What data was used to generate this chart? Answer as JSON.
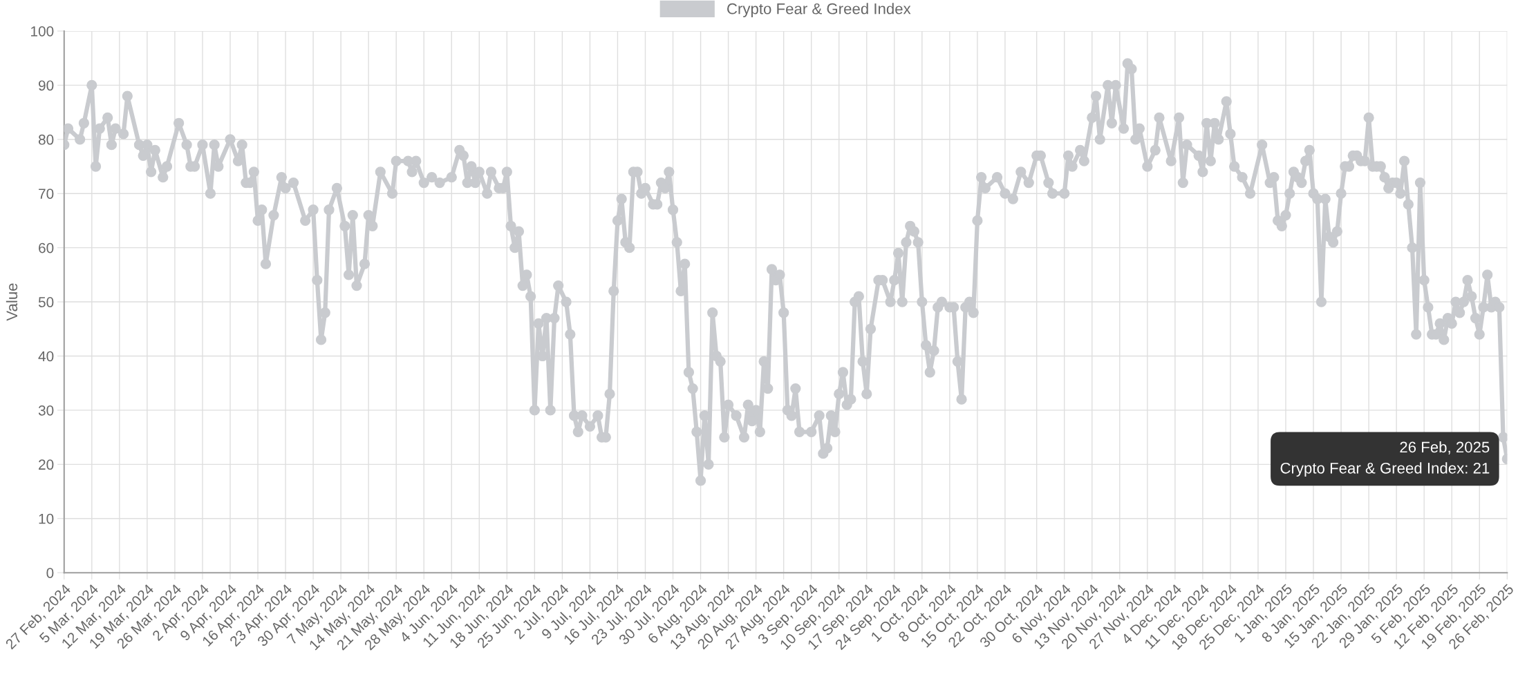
{
  "chart_data": {
    "type": "line",
    "ylabel": "Value",
    "series": [
      {
        "name": "Crypto Fear & Greed Index",
        "color": "#c9cbcf",
        "x": [
          "2024-02-27",
          "2024-02-28",
          "2024-03-02",
          "2024-03-03",
          "2024-03-05",
          "2024-03-06",
          "2024-03-07",
          "2024-03-09",
          "2024-03-10",
          "2024-03-11",
          "2024-03-13",
          "2024-03-14",
          "2024-03-17",
          "2024-03-18",
          "2024-03-19",
          "2024-03-20",
          "2024-03-21",
          "2024-03-23",
          "2024-03-24",
          "2024-03-27",
          "2024-03-29",
          "2024-03-30",
          "2024-03-31",
          "2024-04-02",
          "2024-04-04",
          "2024-04-05",
          "2024-04-06",
          "2024-04-09",
          "2024-04-11",
          "2024-04-12",
          "2024-04-13",
          "2024-04-14",
          "2024-04-15",
          "2024-04-16",
          "2024-04-17",
          "2024-04-18",
          "2024-04-20",
          "2024-04-22",
          "2024-04-23",
          "2024-04-25",
          "2024-04-28",
          "2024-04-30",
          "2024-05-01",
          "2024-05-02",
          "2024-05-03",
          "2024-05-04",
          "2024-05-06",
          "2024-05-08",
          "2024-05-09",
          "2024-05-10",
          "2024-05-11",
          "2024-05-13",
          "2024-05-14",
          "2024-05-15",
          "2024-05-17",
          "2024-05-20",
          "2024-05-21",
          "2024-05-24",
          "2024-05-25",
          "2024-05-26",
          "2024-05-28",
          "2024-05-30",
          "2024-06-01",
          "2024-06-04",
          "2024-06-06",
          "2024-06-07",
          "2024-06-08",
          "2024-06-09",
          "2024-06-10",
          "2024-06-11",
          "2024-06-13",
          "2024-06-14",
          "2024-06-16",
          "2024-06-17",
          "2024-06-18",
          "2024-06-19",
          "2024-06-20",
          "2024-06-21",
          "2024-06-22",
          "2024-06-23",
          "2024-06-24",
          "2024-06-25",
          "2024-06-26",
          "2024-06-27",
          "2024-06-28",
          "2024-06-29",
          "2024-06-30",
          "2024-07-01",
          "2024-07-03",
          "2024-07-04",
          "2024-07-05",
          "2024-07-06",
          "2024-07-07",
          "2024-07-09",
          "2024-07-11",
          "2024-07-12",
          "2024-07-13",
          "2024-07-14",
          "2024-07-15",
          "2024-07-16",
          "2024-07-17",
          "2024-07-18",
          "2024-07-19",
          "2024-07-20",
          "2024-07-21",
          "2024-07-22",
          "2024-07-23",
          "2024-07-25",
          "2024-07-26",
          "2024-07-27",
          "2024-07-28",
          "2024-07-29",
          "2024-07-30",
          "2024-07-31",
          "2024-08-01",
          "2024-08-02",
          "2024-08-03",
          "2024-08-04",
          "2024-08-05",
          "2024-08-06",
          "2024-08-07",
          "2024-08-08",
          "2024-08-09",
          "2024-08-10",
          "2024-08-11",
          "2024-08-12",
          "2024-08-13",
          "2024-08-15",
          "2024-08-17",
          "2024-08-18",
          "2024-08-19",
          "2024-08-20",
          "2024-08-21",
          "2024-08-22",
          "2024-08-23",
          "2024-08-24",
          "2024-08-25",
          "2024-08-26",
          "2024-08-27",
          "2024-08-28",
          "2024-08-29",
          "2024-08-30",
          "2024-08-31",
          "2024-09-03",
          "2024-09-05",
          "2024-09-06",
          "2024-09-07",
          "2024-09-08",
          "2024-09-09",
          "2024-09-10",
          "2024-09-11",
          "2024-09-12",
          "2024-09-13",
          "2024-09-14",
          "2024-09-15",
          "2024-09-16",
          "2024-09-17",
          "2024-09-18",
          "2024-09-20",
          "2024-09-21",
          "2024-09-23",
          "2024-09-24",
          "2024-09-25",
          "2024-09-26",
          "2024-09-27",
          "2024-09-28",
          "2024-09-29",
          "2024-09-30",
          "2024-10-01",
          "2024-10-02",
          "2024-10-03",
          "2024-10-04",
          "2024-10-05",
          "2024-10-06",
          "2024-10-08",
          "2024-10-09",
          "2024-10-10",
          "2024-10-11",
          "2024-10-12",
          "2024-10-13",
          "2024-10-14",
          "2024-10-15",
          "2024-10-16",
          "2024-10-17",
          "2024-10-20",
          "2024-10-22",
          "2024-10-24",
          "2024-10-26",
          "2024-10-28",
          "2024-10-30",
          "2024-10-31",
          "2024-11-02",
          "2024-11-03",
          "2024-11-06",
          "2024-11-07",
          "2024-11-08",
          "2024-11-10",
          "2024-11-11",
          "2024-11-13",
          "2024-11-14",
          "2024-11-15",
          "2024-11-17",
          "2024-11-18",
          "2024-11-19",
          "2024-11-21",
          "2024-11-22",
          "2024-11-23",
          "2024-11-24",
          "2024-11-25",
          "2024-11-27",
          "2024-11-29",
          "2024-11-30",
          "2024-12-03",
          "2024-12-05",
          "2024-12-06",
          "2024-12-07",
          "2024-12-10",
          "2024-12-11",
          "2024-12-12",
          "2024-12-13",
          "2024-12-14",
          "2024-12-15",
          "2024-12-17",
          "2024-12-18",
          "2024-12-19",
          "2024-12-21",
          "2024-12-23",
          "2024-12-26",
          "2024-12-28",
          "2024-12-29",
          "2024-12-30",
          "2024-12-31",
          "2025-01-01",
          "2025-01-02",
          "2025-01-03",
          "2025-01-04",
          "2025-01-05",
          "2025-01-06",
          "2025-01-07",
          "2025-01-08",
          "2025-01-09",
          "2025-01-10",
          "2025-01-11",
          "2025-01-12",
          "2025-01-13",
          "2025-01-14",
          "2025-01-15",
          "2025-01-16",
          "2025-01-17",
          "2025-01-18",
          "2025-01-19",
          "2025-01-20",
          "2025-01-21",
          "2025-01-22",
          "2025-01-23",
          "2025-01-24",
          "2025-01-25",
          "2025-01-26",
          "2025-01-27",
          "2025-01-28",
          "2025-01-29",
          "2025-01-30",
          "2025-01-31",
          "2025-02-01",
          "2025-02-02",
          "2025-02-03",
          "2025-02-04",
          "2025-02-05",
          "2025-02-06",
          "2025-02-07",
          "2025-02-08",
          "2025-02-09",
          "2025-02-10",
          "2025-02-11",
          "2025-02-12",
          "2025-02-13",
          "2025-02-14",
          "2025-02-15",
          "2025-02-16",
          "2025-02-17",
          "2025-02-18",
          "2025-02-19",
          "2025-02-20",
          "2025-02-21",
          "2025-02-22",
          "2025-02-23",
          "2025-02-24",
          "2025-02-25",
          "2025-02-26"
        ],
        "values": [
          79,
          82,
          80,
          83,
          90,
          75,
          82,
          84,
          79,
          82,
          81,
          88,
          79,
          77,
          79,
          74,
          78,
          73,
          75,
          83,
          79,
          75,
          75,
          79,
          70,
          79,
          75,
          80,
          76,
          79,
          72,
          72,
          74,
          65,
          67,
          57,
          66,
          73,
          71,
          72,
          65,
          67,
          54,
          43,
          48,
          67,
          71,
          64,
          55,
          66,
          53,
          57,
          66,
          64,
          74,
          70,
          76,
          76,
          74,
          76,
          72,
          73,
          72,
          73,
          78,
          77,
          72,
          75,
          72,
          74,
          70,
          74,
          71,
          71,
          74,
          64,
          60,
          63,
          53,
          55,
          51,
          30,
          46,
          40,
          47,
          30,
          47,
          53,
          50,
          44,
          29,
          26,
          29,
          27,
          29,
          25,
          25,
          33,
          52,
          65,
          69,
          61,
          60,
          74,
          74,
          70,
          71,
          68,
          68,
          72,
          71,
          74,
          67,
          61,
          52,
          57,
          37,
          34,
          26,
          17,
          29,
          20,
          48,
          40,
          39,
          25,
          31,
          29,
          25,
          31,
          28,
          30,
          26,
          39,
          34,
          56,
          54,
          55,
          48,
          30,
          29,
          34,
          26,
          26,
          29,
          22,
          23,
          29,
          26,
          33,
          37,
          31,
          32,
          50,
          51,
          39,
          33,
          45,
          54,
          54,
          50,
          54,
          59,
          50,
          61,
          64,
          63,
          61,
          50,
          42,
          37,
          41,
          49,
          50,
          49,
          49,
          39,
          32,
          49,
          50,
          48,
          65,
          73,
          71,
          73,
          70,
          69,
          74,
          72,
          77,
          77,
          72,
          70,
          70,
          77,
          75,
          78,
          76,
          84,
          88,
          80,
          90,
          83,
          90,
          82,
          94,
          93,
          80,
          82,
          75,
          78,
          84,
          76,
          84,
          72,
          79,
          77,
          74,
          83,
          76,
          83,
          80,
          87,
          81,
          75,
          73,
          70,
          79,
          72,
          73,
          65,
          64,
          66,
          70,
          74,
          73,
          72,
          76,
          78,
          70,
          69,
          50,
          69,
          62,
          61,
          63,
          70,
          75,
          75,
          77,
          77,
          76,
          76,
          84,
          75,
          75,
          75,
          73,
          71,
          72,
          72,
          70,
          76,
          68,
          60,
          44,
          72,
          54,
          49,
          44,
          44,
          46,
          43,
          47,
          46,
          50,
          48,
          50,
          54,
          51,
          47,
          44,
          49,
          55,
          49,
          50,
          49,
          25,
          21
        ]
      }
    ],
    "xlim": [
      "2024-02-27",
      "2025-02-26"
    ],
    "xticks": [
      {
        "value": "2024-02-27",
        "label": "27 Feb, 2024"
      },
      {
        "value": "2024-03-05",
        "label": "5 Mar, 2024"
      },
      {
        "value": "2024-03-12",
        "label": "12 Mar, 2024"
      },
      {
        "value": "2024-03-19",
        "label": "19 Mar, 2024"
      },
      {
        "value": "2024-03-26",
        "label": "26 Mar, 2024"
      },
      {
        "value": "2024-04-02",
        "label": "2 Apr, 2024"
      },
      {
        "value": "2024-04-09",
        "label": "9 Apr, 2024"
      },
      {
        "value": "2024-04-16",
        "label": "16 Apr, 2024"
      },
      {
        "value": "2024-04-23",
        "label": "23 Apr, 2024"
      },
      {
        "value": "2024-04-30",
        "label": "30 Apr, 2024"
      },
      {
        "value": "2024-05-07",
        "label": "7 May, 2024"
      },
      {
        "value": "2024-05-14",
        "label": "14 May, 2024"
      },
      {
        "value": "2024-05-21",
        "label": "21 May, 2024"
      },
      {
        "value": "2024-05-28",
        "label": "28 May, 2024"
      },
      {
        "value": "2024-06-04",
        "label": "4 Jun, 2024"
      },
      {
        "value": "2024-06-11",
        "label": "11 Jun, 2024"
      },
      {
        "value": "2024-06-18",
        "label": "18 Jun, 2024"
      },
      {
        "value": "2024-06-25",
        "label": "25 Jun, 2024"
      },
      {
        "value": "2024-07-02",
        "label": "2 Jul, 2024"
      },
      {
        "value": "2024-07-09",
        "label": "9 Jul, 2024"
      },
      {
        "value": "2024-07-16",
        "label": "16 Jul, 2024"
      },
      {
        "value": "2024-07-23",
        "label": "23 Jul, 2024"
      },
      {
        "value": "2024-07-30",
        "label": "30 Jul, 2024"
      },
      {
        "value": "2024-08-06",
        "label": "6 Aug, 2024"
      },
      {
        "value": "2024-08-13",
        "label": "13 Aug, 2024"
      },
      {
        "value": "2024-08-20",
        "label": "20 Aug, 2024"
      },
      {
        "value": "2024-08-27",
        "label": "27 Aug, 2024"
      },
      {
        "value": "2024-09-03",
        "label": "3 Sep, 2024"
      },
      {
        "value": "2024-09-10",
        "label": "10 Sep, 2024"
      },
      {
        "value": "2024-09-17",
        "label": "17 Sep, 2024"
      },
      {
        "value": "2024-09-24",
        "label": "24 Sep, 2024"
      },
      {
        "value": "2024-10-01",
        "label": "1 Oct, 2024"
      },
      {
        "value": "2024-10-08",
        "label": "8 Oct, 2024"
      },
      {
        "value": "2024-10-15",
        "label": "15 Oct, 2024"
      },
      {
        "value": "2024-10-22",
        "label": "22 Oct, 2024"
      },
      {
        "value": "2024-10-30",
        "label": "30 Oct, 2024"
      },
      {
        "value": "2024-11-06",
        "label": "6 Nov, 2024"
      },
      {
        "value": "2024-11-13",
        "label": "13 Nov, 2024"
      },
      {
        "value": "2024-11-20",
        "label": "20 Nov, 2024"
      },
      {
        "value": "2024-11-27",
        "label": "27 Nov, 2024"
      },
      {
        "value": "2024-12-04",
        "label": "4 Dec, 2024"
      },
      {
        "value": "2024-12-11",
        "label": "11 Dec, 2024"
      },
      {
        "value": "2024-12-18",
        "label": "18 Dec, 2024"
      },
      {
        "value": "2024-12-25",
        "label": "25 Dec, 2024"
      },
      {
        "value": "2025-01-01",
        "label": "1 Jan, 2025"
      },
      {
        "value": "2025-01-08",
        "label": "8 Jan, 2025"
      },
      {
        "value": "2025-01-15",
        "label": "15 Jan, 2025"
      },
      {
        "value": "2025-01-22",
        "label": "22 Jan, 2025"
      },
      {
        "value": "2025-01-29",
        "label": "29 Jan, 2025"
      },
      {
        "value": "2025-02-05",
        "label": "5 Feb, 2025"
      },
      {
        "value": "2025-02-12",
        "label": "12 Feb, 2025"
      },
      {
        "value": "2025-02-19",
        "label": "19 Feb, 2025"
      },
      {
        "value": "2025-02-26",
        "label": "26 Feb, 2025"
      }
    ],
    "ylim": [
      0,
      100
    ],
    "yticks": [
      0,
      10,
      20,
      30,
      40,
      50,
      60,
      70,
      80,
      90,
      100
    ],
    "grid": true,
    "legend": "top",
    "marker": "circle",
    "line_style": "solid",
    "annotations": [
      {
        "text": "26 Feb, 2025\nCrypto Fear & Greed Index: 21",
        "x": "2025-02-26",
        "y": 21
      }
    ]
  }
}
